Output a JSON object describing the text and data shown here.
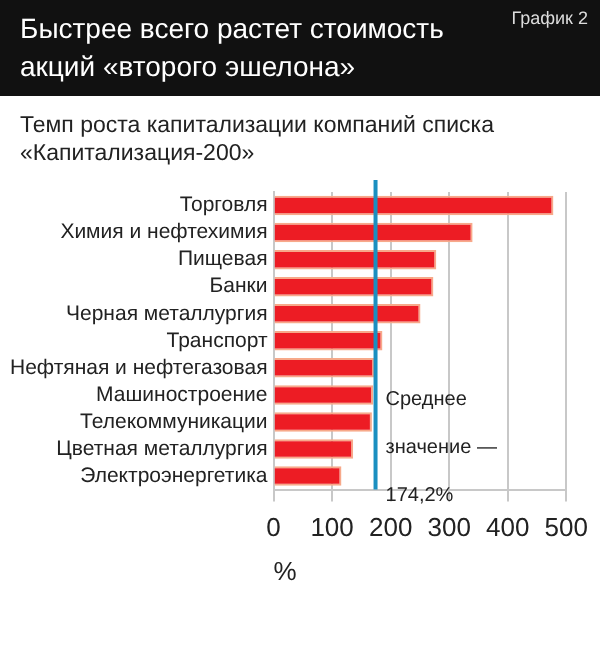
{
  "chart_data": {
    "type": "bar",
    "orientation": "horizontal",
    "title": "Быстрее всего растет стоимость акций «второго эшелона»",
    "subtitle": "Темп роста капитализации компаний списка «Капитализация-200»",
    "xlabel": "%",
    "annotations": [
      "График 2"
    ],
    "categories": [
      "Торговля",
      "Химия и нефтехимия",
      "Пищевая",
      "Банки",
      "Черная металлургия",
      "Транспорт",
      "Нефтяная и нефтегазовая",
      "Машиностроение",
      "Телекоммуникации",
      "Цветная металлургия",
      "Электроэнергетика"
    ],
    "values": [
      478,
      340,
      278,
      273,
      251,
      186,
      172,
      170,
      168,
      136,
      116
    ],
    "color": "#ed1c24",
    "xlim": [
      0,
      500
    ],
    "xticks": [
      0,
      100,
      200,
      300,
      400,
      500
    ],
    "grid": "x",
    "ref_lines": [
      {
        "axis": "x",
        "value": 174.2,
        "label": "Среднее значение — 174,2%",
        "color": "#1a8fc0"
      }
    ]
  }
}
